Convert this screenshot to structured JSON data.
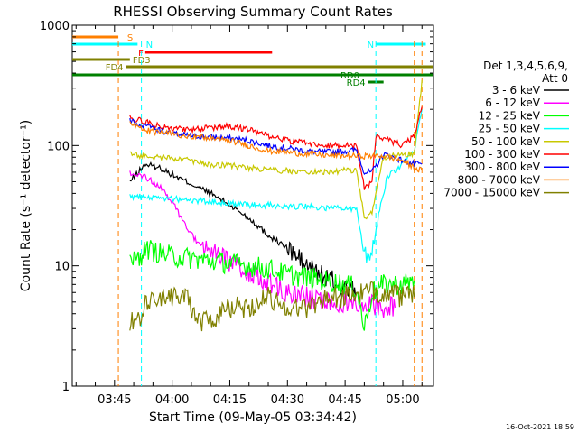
{
  "chart_data": {
    "type": "line",
    "title": "RHESSI Observing Summary Count Rates",
    "xlabel": "Start Time (09-May-05 03:34:42)",
    "ylabel": "Count Rate (s⁻¹ detector⁻¹)",
    "y_scale": "log",
    "ylim": [
      1,
      1000
    ],
    "xlim": [
      "03:34",
      "05:08"
    ],
    "x_ticks": [
      "03:45",
      "04:00",
      "04:15",
      "04:30",
      "04:45",
      "05:00"
    ],
    "y_ticks": [
      "1",
      "10",
      "100",
      "1000"
    ],
    "grid": false,
    "legend_position": "right",
    "legend_title": "Det 1,3,4,5,6,9,",
    "legend_subtitle": "Att 0",
    "timestamp": "16-Oct-2021 18:59",
    "flags": [
      {
        "label": "S",
        "color": "#ff7f00",
        "start": "03:34",
        "end": "03:46"
      },
      {
        "label": "N",
        "color": "#00ffff",
        "start": "03:34",
        "end": "03:51"
      },
      {
        "label": "N",
        "color": "#00ffff",
        "start": "04:53",
        "end": "05:06"
      },
      {
        "label": "F",
        "color": "#ff0000",
        "start": "03:53",
        "end": "04:26"
      },
      {
        "label": "FD3",
        "color": "#808000",
        "start": "03:34",
        "end": "03:49"
      },
      {
        "label": "FD4",
        "color": "#808000",
        "start": "03:48",
        "end": "05:08"
      },
      {
        "label": "RD0",
        "color": "#008000",
        "start": "03:34",
        "end": "05:08"
      },
      {
        "label": "RD4",
        "color": "#008000",
        "start": "04:51",
        "end": "04:55"
      }
    ],
    "vlines": [
      {
        "time": "03:46",
        "color": "#ff7f00"
      },
      {
        "time": "03:52",
        "color": "#00ffff"
      },
      {
        "time": "04:53",
        "color": "#00ffff"
      },
      {
        "time": "05:03",
        "color": "#ff7f00"
      },
      {
        "time": "05:05",
        "color": "#ff7f00"
      }
    ],
    "series": [
      {
        "name": "3 - 6 keV",
        "color": "#000000",
        "x": [
          "03:49",
          "03:53",
          "03:57",
          "04:01",
          "04:05",
          "04:10",
          "04:15",
          "04:20",
          "04:25",
          "04:30",
          "04:35",
          "04:40",
          "04:45",
          "04:48"
        ],
        "y": [
          50,
          70,
          65,
          55,
          48,
          40,
          32,
          25,
          18,
          14,
          10,
          8,
          6.5,
          6
        ]
      },
      {
        "name": "6 - 12 keV",
        "color": "#ff00ff",
        "x": [
          "03:49",
          "03:53",
          "03:57",
          "04:01",
          "04:04",
          "04:08",
          "04:12",
          "04:16",
          "04:20",
          "04:25",
          "04:30",
          "04:35",
          "04:40",
          "04:45",
          "04:50",
          "04:55",
          "04:58"
        ],
        "y": [
          60,
          55,
          45,
          30,
          20,
          14,
          12,
          10,
          9,
          7,
          6,
          5.5,
          5,
          5,
          5,
          4.5,
          4.5
        ]
      },
      {
        "name": "12 - 25 keV",
        "color": "#00ff00",
        "x": [
          "03:49",
          "03:52",
          "03:53",
          "03:56",
          "04:00",
          "04:05",
          "04:10",
          "04:15",
          "04:20",
          "04:25",
          "04:30",
          "04:35",
          "04:40",
          "04:45",
          "04:48",
          "04:50",
          "04:52",
          "04:55",
          "05:00",
          "05:03"
        ],
        "y": [
          11,
          12,
          14,
          13,
          12,
          11.5,
          11,
          10.5,
          10,
          9.5,
          8.5,
          8,
          7.5,
          7,
          6.5,
          3,
          6,
          7,
          7,
          7.5
        ]
      },
      {
        "name": "25 - 50 keV",
        "color": "#00ffff",
        "x": [
          "03:49",
          "03:55",
          "04:00",
          "04:05",
          "04:10",
          "04:15",
          "04:20",
          "04:25",
          "04:30",
          "04:35",
          "04:40",
          "04:45",
          "04:48",
          "04:50",
          "04:52",
          "04:54",
          "04:56",
          "05:00",
          "05:03",
          "05:05"
        ],
        "y": [
          38,
          37,
          36,
          35,
          34,
          33,
          32,
          32,
          31,
          31,
          30,
          30,
          30,
          12,
          14,
          30,
          55,
          70,
          90,
          200
        ]
      },
      {
        "name": "50 - 100 keV",
        "color": "#c8c800",
        "x": [
          "03:49",
          "03:55",
          "04:00",
          "04:05",
          "04:10",
          "04:15",
          "04:20",
          "04:25",
          "04:30",
          "04:35",
          "04:40",
          "04:45",
          "04:48",
          "04:50",
          "04:52",
          "04:55",
          "05:00",
          "05:03",
          "05:05"
        ],
        "y": [
          85,
          80,
          78,
          75,
          70,
          68,
          65,
          62,
          62,
          60,
          60,
          62,
          62,
          25,
          28,
          80,
          85,
          85,
          350
        ]
      },
      {
        "name": "100 - 300 keV",
        "color": "#ff0000",
        "x": [
          "03:49",
          "03:55",
          "04:00",
          "04:05",
          "04:10",
          "04:15",
          "04:20",
          "04:25",
          "04:30",
          "04:35",
          "04:40",
          "04:45",
          "04:48",
          "04:50",
          "04:52",
          "04:53",
          "04:55",
          "05:00",
          "05:03",
          "05:05"
        ],
        "y": [
          170,
          150,
          140,
          135,
          140,
          145,
          135,
          120,
          110,
          105,
          100,
          100,
          100,
          45,
          50,
          120,
          115,
          100,
          120,
          210
        ]
      },
      {
        "name": "300 - 800 keV",
        "color": "#0000ff",
        "x": [
          "03:49",
          "03:55",
          "04:00",
          "04:05",
          "04:10",
          "04:15",
          "04:20",
          "04:25",
          "04:30",
          "04:35",
          "04:40",
          "04:45",
          "04:48",
          "04:50",
          "04:52",
          "04:55",
          "05:00",
          "05:03",
          "05:05"
        ],
        "y": [
          160,
          140,
          125,
          120,
          118,
          115,
          110,
          100,
          95,
          90,
          88,
          90,
          92,
          60,
          60,
          85,
          75,
          70,
          70
        ]
      },
      {
        "name": "800 - 7000 keV",
        "color": "#ff7f00",
        "x": [
          "03:49",
          "03:55",
          "04:00",
          "04:05",
          "04:10",
          "04:15",
          "04:20",
          "04:25",
          "04:30",
          "04:35",
          "04:40",
          "04:45",
          "04:48",
          "04:52",
          "04:55",
          "05:00",
          "05:03",
          "05:05"
        ],
        "y": [
          150,
          130,
          125,
          120,
          115,
          110,
          100,
          90,
          88,
          85,
          83,
          82,
          82,
          82,
          82,
          75,
          65,
          62
        ]
      },
      {
        "name": "7000 - 15000 keV",
        "color": "#808000",
        "x": [
          "03:49",
          "03:52",
          "03:53",
          "03:56",
          "04:00",
          "04:04",
          "04:06",
          "04:10",
          "04:15",
          "04:20",
          "04:25",
          "04:30",
          "04:35",
          "04:40",
          "04:45",
          "04:50",
          "04:55",
          "05:00",
          "05:03"
        ],
        "y": [
          3.5,
          3.3,
          5,
          5,
          5.5,
          6,
          3.5,
          3.5,
          4.5,
          4.5,
          5.5,
          4.5,
          4.5,
          5.5,
          5.5,
          6,
          6,
          5.5,
          5.5
        ]
      }
    ]
  }
}
